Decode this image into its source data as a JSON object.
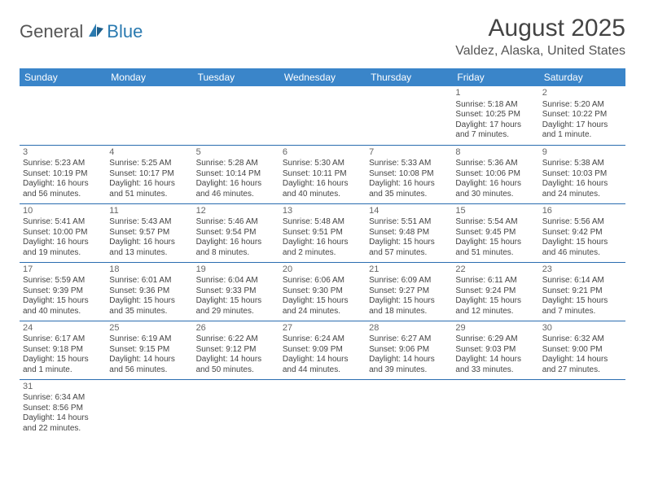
{
  "logo": {
    "general": "General",
    "blue": "Blue"
  },
  "title": "August 2025",
  "location": "Valdez, Alaska, United States",
  "header_bg": "#3a85c9",
  "border_color": "#2a6db0",
  "weekdays": [
    "Sunday",
    "Monday",
    "Tuesday",
    "Wednesday",
    "Thursday",
    "Friday",
    "Saturday"
  ],
  "weeks": [
    [
      null,
      null,
      null,
      null,
      null,
      {
        "n": "1",
        "sr": "5:18 AM",
        "ss": "10:25 PM",
        "dl": "17 hours and 7 minutes."
      },
      {
        "n": "2",
        "sr": "5:20 AM",
        "ss": "10:22 PM",
        "dl": "17 hours and 1 minute."
      }
    ],
    [
      {
        "n": "3",
        "sr": "5:23 AM",
        "ss": "10:19 PM",
        "dl": "16 hours and 56 minutes."
      },
      {
        "n": "4",
        "sr": "5:25 AM",
        "ss": "10:17 PM",
        "dl": "16 hours and 51 minutes."
      },
      {
        "n": "5",
        "sr": "5:28 AM",
        "ss": "10:14 PM",
        "dl": "16 hours and 46 minutes."
      },
      {
        "n": "6",
        "sr": "5:30 AM",
        "ss": "10:11 PM",
        "dl": "16 hours and 40 minutes."
      },
      {
        "n": "7",
        "sr": "5:33 AM",
        "ss": "10:08 PM",
        "dl": "16 hours and 35 minutes."
      },
      {
        "n": "8",
        "sr": "5:36 AM",
        "ss": "10:06 PM",
        "dl": "16 hours and 30 minutes."
      },
      {
        "n": "9",
        "sr": "5:38 AM",
        "ss": "10:03 PM",
        "dl": "16 hours and 24 minutes."
      }
    ],
    [
      {
        "n": "10",
        "sr": "5:41 AM",
        "ss": "10:00 PM",
        "dl": "16 hours and 19 minutes."
      },
      {
        "n": "11",
        "sr": "5:43 AM",
        "ss": "9:57 PM",
        "dl": "16 hours and 13 minutes."
      },
      {
        "n": "12",
        "sr": "5:46 AM",
        "ss": "9:54 PM",
        "dl": "16 hours and 8 minutes."
      },
      {
        "n": "13",
        "sr": "5:48 AM",
        "ss": "9:51 PM",
        "dl": "16 hours and 2 minutes."
      },
      {
        "n": "14",
        "sr": "5:51 AM",
        "ss": "9:48 PM",
        "dl": "15 hours and 57 minutes."
      },
      {
        "n": "15",
        "sr": "5:54 AM",
        "ss": "9:45 PM",
        "dl": "15 hours and 51 minutes."
      },
      {
        "n": "16",
        "sr": "5:56 AM",
        "ss": "9:42 PM",
        "dl": "15 hours and 46 minutes."
      }
    ],
    [
      {
        "n": "17",
        "sr": "5:59 AM",
        "ss": "9:39 PM",
        "dl": "15 hours and 40 minutes."
      },
      {
        "n": "18",
        "sr": "6:01 AM",
        "ss": "9:36 PM",
        "dl": "15 hours and 35 minutes."
      },
      {
        "n": "19",
        "sr": "6:04 AM",
        "ss": "9:33 PM",
        "dl": "15 hours and 29 minutes."
      },
      {
        "n": "20",
        "sr": "6:06 AM",
        "ss": "9:30 PM",
        "dl": "15 hours and 24 minutes."
      },
      {
        "n": "21",
        "sr": "6:09 AM",
        "ss": "9:27 PM",
        "dl": "15 hours and 18 minutes."
      },
      {
        "n": "22",
        "sr": "6:11 AM",
        "ss": "9:24 PM",
        "dl": "15 hours and 12 minutes."
      },
      {
        "n": "23",
        "sr": "6:14 AM",
        "ss": "9:21 PM",
        "dl": "15 hours and 7 minutes."
      }
    ],
    [
      {
        "n": "24",
        "sr": "6:17 AM",
        "ss": "9:18 PM",
        "dl": "15 hours and 1 minute."
      },
      {
        "n": "25",
        "sr": "6:19 AM",
        "ss": "9:15 PM",
        "dl": "14 hours and 56 minutes."
      },
      {
        "n": "26",
        "sr": "6:22 AM",
        "ss": "9:12 PM",
        "dl": "14 hours and 50 minutes."
      },
      {
        "n": "27",
        "sr": "6:24 AM",
        "ss": "9:09 PM",
        "dl": "14 hours and 44 minutes."
      },
      {
        "n": "28",
        "sr": "6:27 AM",
        "ss": "9:06 PM",
        "dl": "14 hours and 39 minutes."
      },
      {
        "n": "29",
        "sr": "6:29 AM",
        "ss": "9:03 PM",
        "dl": "14 hours and 33 minutes."
      },
      {
        "n": "30",
        "sr": "6:32 AM",
        "ss": "9:00 PM",
        "dl": "14 hours and 27 minutes."
      }
    ],
    [
      {
        "n": "31",
        "sr": "6:34 AM",
        "ss": "8:56 PM",
        "dl": "14 hours and 22 minutes."
      },
      null,
      null,
      null,
      null,
      null,
      null
    ]
  ]
}
